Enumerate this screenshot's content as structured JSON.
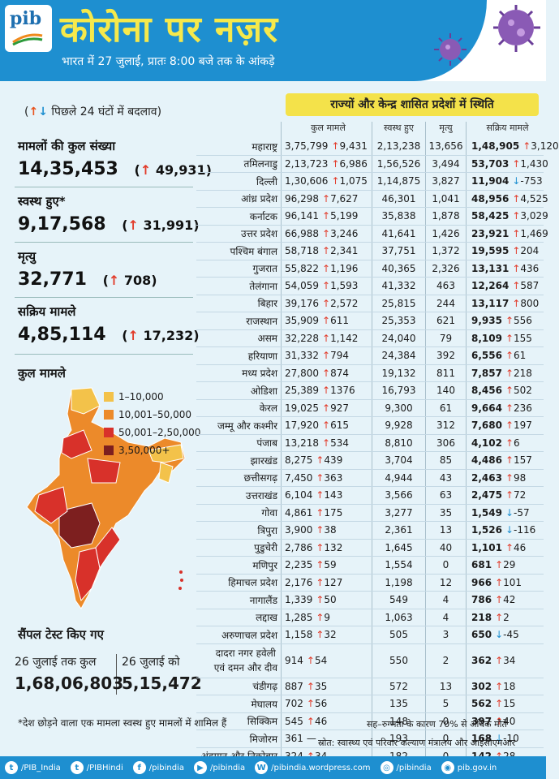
{
  "header": {
    "logo_text": "pib",
    "title": "कोरोना पर नज़र",
    "subtitle": "भारत में 27 जुलाई, प्रातः 8:00 बजे तक के आंकड़े"
  },
  "left": {
    "change_note": "पिछले 24 घंटों में बदलाव",
    "change_note_arrows": "↑↓",
    "total_label": "मामलों की कुल संख्या",
    "total_value": "14,35,453",
    "total_change": "49,931",
    "recovered_label": "स्वस्थ हुए*",
    "recovered_value": "9,17,568",
    "recovered_change": "31,991",
    "deaths_label": "मृत्यु",
    "deaths_value": "32,771",
    "deaths_change": "708",
    "active_label": "सक्रिय मामले",
    "active_value": "4,85,114",
    "active_change": "17,232"
  },
  "map": {
    "title": "कुल मामले",
    "legend": [
      {
        "label": "1–10,000",
        "color": "#f3c24a"
      },
      {
        "label": "10,001–50,000",
        "color": "#ec8a2a"
      },
      {
        "label": "50,001–2,50,000",
        "color": "#d8312a"
      },
      {
        "label": "3,50,000+",
        "color": "#7d1f1f"
      }
    ]
  },
  "samples": {
    "title": "सैंपल टेस्ट किए गए",
    "cumulative_label": "26 जुलाई तक कुल",
    "cumulative_value": "1,68,06,803",
    "day_label": "26 जुलाई को",
    "day_value": "5,15,472"
  },
  "table": {
    "banner": "राज्यों और केन्द्र शासित प्रदेशों में स्थिति",
    "headers": [
      "कुल मामले",
      "स्वस्थ हुए",
      "मृत्यु",
      "सक्रिय मामले"
    ],
    "rows": [
      {
        "state": "महाराष्ट्र",
        "total": "3,75,799",
        "total_delta": "9,431",
        "recovered": "2,13,238",
        "deaths": "13,656",
        "active": "1,48,905",
        "active_dir": "up",
        "active_delta": "3,120"
      },
      {
        "state": "तमिलनाडु",
        "total": "2,13,723",
        "total_delta": "6,986",
        "recovered": "1,56,526",
        "deaths": "3,494",
        "active": "53,703",
        "active_dir": "up",
        "active_delta": "1,430"
      },
      {
        "state": "दिल्ली",
        "total": "1,30,606",
        "total_delta": "1,075",
        "recovered": "1,14,875",
        "deaths": "3,827",
        "active": "11,904",
        "active_dir": "down",
        "active_delta": "-753"
      },
      {
        "state": "आंध्र प्रदेश",
        "total": "96,298",
        "total_delta": "7,627",
        "recovered": "46,301",
        "deaths": "1,041",
        "active": "48,956",
        "active_dir": "up",
        "active_delta": "4,525"
      },
      {
        "state": "कर्नाटक",
        "total": "96,141",
        "total_delta": "5,199",
        "recovered": "35,838",
        "deaths": "1,878",
        "active": "58,425",
        "active_dir": "up",
        "active_delta": "3,029"
      },
      {
        "state": "उत्तर प्रदेश",
        "total": "66,988",
        "total_delta": "3,246",
        "recovered": "41,641",
        "deaths": "1,426",
        "active": "23,921",
        "active_dir": "up",
        "active_delta": "1,469"
      },
      {
        "state": "पश्चिम बंगाल",
        "total": "58,718",
        "total_delta": "2,341",
        "recovered": "37,751",
        "deaths": "1,372",
        "active": "19,595",
        "active_dir": "up",
        "active_delta": "204"
      },
      {
        "state": "गुजरात",
        "total": "55,822",
        "total_delta": "1,196",
        "recovered": "40,365",
        "deaths": "2,326",
        "active": "13,131",
        "active_dir": "up",
        "active_delta": "436"
      },
      {
        "state": "तेलंगाना",
        "total": "54,059",
        "total_delta": "1,593",
        "recovered": "41,332",
        "deaths": "463",
        "active": "12,264",
        "active_dir": "up",
        "active_delta": "587"
      },
      {
        "state": "बिहार",
        "total": "39,176",
        "total_delta": "2,572",
        "recovered": "25,815",
        "deaths": "244",
        "active": "13,117",
        "active_dir": "up",
        "active_delta": "800"
      },
      {
        "state": "राजस्थान",
        "total": "35,909",
        "total_delta": "611",
        "recovered": "25,353",
        "deaths": "621",
        "active": "9,935",
        "active_dir": "up",
        "active_delta": "556"
      },
      {
        "state": "असम",
        "total": "32,228",
        "total_delta": "1,142",
        "recovered": "24,040",
        "deaths": "79",
        "active": "8,109",
        "active_dir": "up",
        "active_delta": "155"
      },
      {
        "state": "हरियाणा",
        "total": "31,332",
        "total_delta": "794",
        "recovered": "24,384",
        "deaths": "392",
        "active": "6,556",
        "active_dir": "up",
        "active_delta": "61"
      },
      {
        "state": "मध्य प्रदेश",
        "total": "27,800",
        "total_delta": "874",
        "recovered": "19,132",
        "deaths": "811",
        "active": "7,857",
        "active_dir": "up",
        "active_delta": "218"
      },
      {
        "state": "ओडिशा",
        "total": "25,389",
        "total_delta": "1376",
        "recovered": "16,793",
        "deaths": "140",
        "active": "8,456",
        "active_dir": "up",
        "active_delta": "502"
      },
      {
        "state": "केरल",
        "total": "19,025",
        "total_delta": "927",
        "recovered": "9,300",
        "deaths": "61",
        "active": "9,664",
        "active_dir": "up",
        "active_delta": "236"
      },
      {
        "state": "जम्मू और कश्मीर",
        "total": "17,920",
        "total_delta": "615",
        "recovered": "9,928",
        "deaths": "312",
        "active": "7,680",
        "active_dir": "up",
        "active_delta": "197"
      },
      {
        "state": "पंजाब",
        "total": "13,218",
        "total_delta": "534",
        "recovered": "8,810",
        "deaths": "306",
        "active": "4,102",
        "active_dir": "up",
        "active_delta": "6"
      },
      {
        "state": "झारखंड",
        "total": "8,275",
        "total_delta": "439",
        "recovered": "3,704",
        "deaths": "85",
        "active": "4,486",
        "active_dir": "up",
        "active_delta": "157"
      },
      {
        "state": "छत्तीसगढ़",
        "total": "7,450",
        "total_delta": "363",
        "recovered": "4,944",
        "deaths": "43",
        "active": "2,463",
        "active_dir": "up",
        "active_delta": "98"
      },
      {
        "state": "उत्तराखंड",
        "total": "6,104",
        "total_delta": "143",
        "recovered": "3,566",
        "deaths": "63",
        "active": "2,475",
        "active_dir": "up",
        "active_delta": "72"
      },
      {
        "state": "गोवा",
        "total": "4,861",
        "total_delta": "175",
        "recovered": "3,277",
        "deaths": "35",
        "active": "1,549",
        "active_dir": "down",
        "active_delta": "-57"
      },
      {
        "state": "त्रिपुरा",
        "total": "3,900",
        "total_delta": "38",
        "recovered": "2,361",
        "deaths": "13",
        "active": "1,526",
        "active_dir": "down",
        "active_delta": "-116"
      },
      {
        "state": "पुडुचेरी",
        "total": "2,786",
        "total_delta": "132",
        "recovered": "1,645",
        "deaths": "40",
        "active": "1,101",
        "active_dir": "up",
        "active_delta": "46"
      },
      {
        "state": "मणिपुर",
        "total": "2,235",
        "total_delta": "59",
        "recovered": "1,554",
        "deaths": "0",
        "active": "681",
        "active_dir": "up",
        "active_delta": "29"
      },
      {
        "state": "हिमाचल प्रदेश",
        "total": "2,176",
        "total_delta": "127",
        "recovered": "1,198",
        "deaths": "12",
        "active": "966",
        "active_dir": "up",
        "active_delta": "101"
      },
      {
        "state": "नागालैंड",
        "total": "1,339",
        "total_delta": "50",
        "recovered": "549",
        "deaths": "4",
        "active": "786",
        "active_dir": "up",
        "active_delta": "42"
      },
      {
        "state": "लद्दाख",
        "total": "1,285",
        "total_delta": "9",
        "recovered": "1,063",
        "deaths": "4",
        "active": "218",
        "active_dir": "up",
        "active_delta": "2"
      },
      {
        "state": "अरुणाचल प्रदेश",
        "total": "1,158",
        "total_delta": "32",
        "recovered": "505",
        "deaths": "3",
        "active": "650",
        "active_dir": "down",
        "active_delta": "-45"
      },
      {
        "state": "दादरा नगर हवेली एवं दमन और दीव",
        "state_line1": "दादरा नगर हवेली",
        "state_line2": "एवं दमन और दीव",
        "total": "914",
        "total_delta": "54",
        "recovered": "550",
        "deaths": "2",
        "active": "362",
        "active_dir": "up",
        "active_delta": "34"
      },
      {
        "state": "चंडीगढ़",
        "total": "887",
        "total_delta": "35",
        "recovered": "572",
        "deaths": "13",
        "active": "302",
        "active_dir": "up",
        "active_delta": "18"
      },
      {
        "state": "मेघालय",
        "total": "702",
        "total_delta": "56",
        "recovered": "135",
        "deaths": "5",
        "active": "562",
        "active_dir": "up",
        "active_delta": "15"
      },
      {
        "state": "सिक्किम",
        "total": "545",
        "total_delta": "46",
        "recovered": "148",
        "deaths": "0",
        "active": "397",
        "active_dir": "up",
        "active_delta": "40"
      },
      {
        "state": "मिजोरम",
        "total": "361",
        "total_delta": "—",
        "recovered": "193",
        "deaths": "0",
        "active": "168",
        "active_dir": "down",
        "active_delta": "-10"
      },
      {
        "state": "अंडमान और निकोबार",
        "total": "324",
        "total_delta": "34",
        "recovered": "182",
        "deaths": "0",
        "active": "142",
        "active_dir": "up",
        "active_delta": "28"
      }
    ]
  },
  "footnotes": {
    "left": "*देश छोड़ने वाला एक मामला स्वस्थ हुए मामलों में शामिल हैं",
    "right": "सह–रुग्णता के कारण 70% से अधिक मौतें",
    "source": "स्रोत: स्वास्थ्य एवं परिवार कल्याण मंत्रालय और आईसीएमआर"
  },
  "footer": {
    "links": [
      {
        "icon": "twitter-icon",
        "glyph": "t",
        "label": "/PIB_India"
      },
      {
        "icon": "twitter-icon",
        "glyph": "t",
        "label": "/PIBHindi"
      },
      {
        "icon": "facebook-icon",
        "glyph": "f",
        "label": "/pibindia"
      },
      {
        "icon": "youtube-icon",
        "glyph": "▶",
        "label": "/pibindia"
      },
      {
        "icon": "wordpress-icon",
        "glyph": "W",
        "label": "/pibindia.wordpress.com"
      },
      {
        "icon": "instagram-icon",
        "glyph": "◎",
        "label": "/pibindia"
      },
      {
        "icon": "web-icon",
        "glyph": "◉",
        "label": "pib.gov.in"
      }
    ]
  },
  "colors": {
    "brand_blue": "#1e8fd0",
    "title_yellow": "#f6e94b",
    "banner_yellow": "#f4e24a",
    "up_red": "#e23b2a",
    "down_blue": "#1e8fd0",
    "background": "#e6f3f9"
  }
}
